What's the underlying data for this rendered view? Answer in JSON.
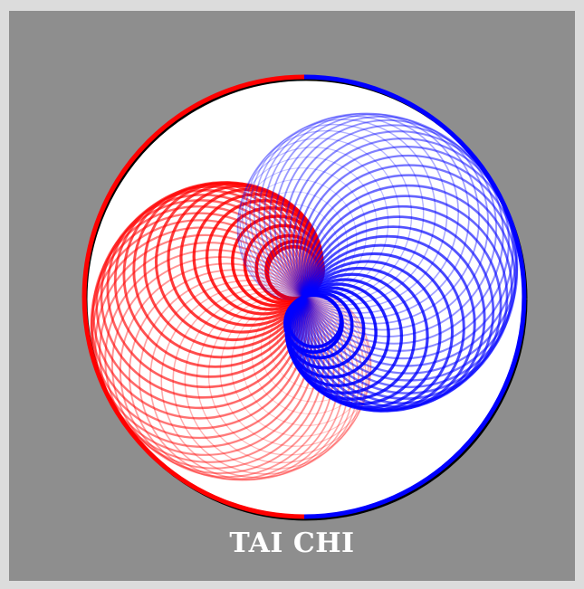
{
  "caption": "TAI CHI",
  "colors": {
    "background": "#8e8e8e",
    "frame": "#dcdcdc",
    "disc": "#ffffff",
    "yin": "#ff0000",
    "yang": "#0000ff",
    "outline": "#000000"
  }
}
